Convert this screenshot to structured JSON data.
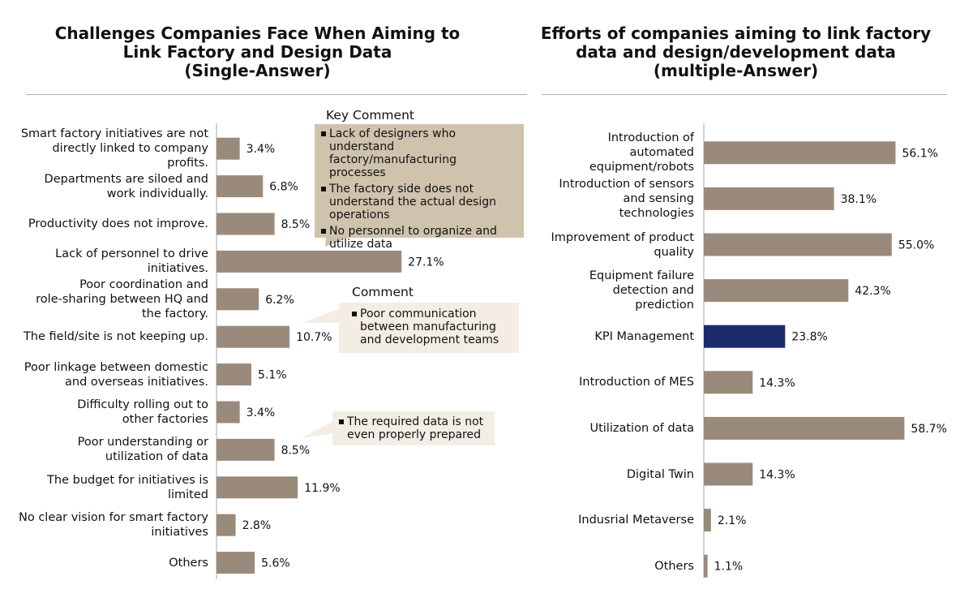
{
  "colors": {
    "bar": "#9a8a7c",
    "highlight": "#1c2b6b",
    "callout_dark": "#cfc3ad",
    "callout_light": "#f3ede6",
    "rule": "#b9b1a3",
    "axis": "#aaaaaa"
  },
  "left_title": "Challenges Companies Face When Aiming to\nLink Factory and Design Data\n(Single-Answer)",
  "right_title": "Efforts of companies aiming to link factory\ndata and design/development data\n(multiple-Answer)",
  "callouts": {
    "key_title": "Key Comment",
    "key_items": [
      "Lack of designers who understand factory/manufacturing processes",
      "The factory side does not understand the actual design operations",
      "No personnel to organize and utilize data"
    ],
    "comment_title": "Comment",
    "comment_items": [
      "Poor communication between manufacturing and development teams"
    ],
    "data_items": [
      "The required data is not even properly prepared"
    ]
  },
  "chart_data": [
    {
      "type": "bar",
      "orientation": "horizontal",
      "title": "Challenges Companies Face When Aiming to Link Factory and Design Data (Single-Answer)",
      "categories": [
        "Smart factory initiatives are not\ndirectly linked to company\nprofits.",
        "Departments are siloed and\nwork individually.",
        "Productivity does not improve.",
        "Lack of personnel to drive\ninitiatives.",
        "Poor coordination and\nrole-sharing between HQ and\nthe factory.",
        "The field/site is not keeping up.",
        "Poor linkage between domestic\nand overseas initiatives.",
        "Difficulty rolling out to\nother factories",
        "Poor understanding or\nutilization of data",
        "The budget for initiatives is\nlimited",
        "No clear vision for smart factory\ninitiatives",
        "Others"
      ],
      "values": [
        3.4,
        6.8,
        8.5,
        27.1,
        6.2,
        10.7,
        5.1,
        3.4,
        8.5,
        11.9,
        2.8,
        5.6
      ],
      "value_labels": [
        "3.4%",
        "6.8%",
        "8.5%",
        "27.1%",
        "6.2%",
        "10.7%",
        "5.1%",
        "3.4%",
        "8.5%",
        "11.9%",
        "2.8%",
        "5.6%"
      ],
      "unit": "%"
    },
    {
      "type": "bar",
      "orientation": "horizontal",
      "title": "Efforts of companies aiming to link factory data and design/development data (multiple-Answer)",
      "categories": [
        "Introduction of\nautomated\nequipment/robots",
        "Introduction of sensors\nand sensing\ntechnologies",
        "Improvement of product\nquality",
        "Equipment failure\ndetection and\nprediction",
        "KPI Management",
        "Introduction of MES",
        "Utilization of data",
        "Digital Twin",
        "Indusrial Metaverse",
        "Others"
      ],
      "values": [
        56.1,
        38.1,
        55.0,
        42.3,
        23.8,
        14.3,
        58.7,
        14.3,
        2.1,
        1.1
      ],
      "value_labels": [
        "56.1%",
        "38.1%",
        "55.0%",
        "42.3%",
        "23.8%",
        "14.3%",
        "58.7%",
        "14.3%",
        "2.1%",
        "1.1%"
      ],
      "highlighted_category": "KPI Management",
      "unit": "%"
    }
  ]
}
